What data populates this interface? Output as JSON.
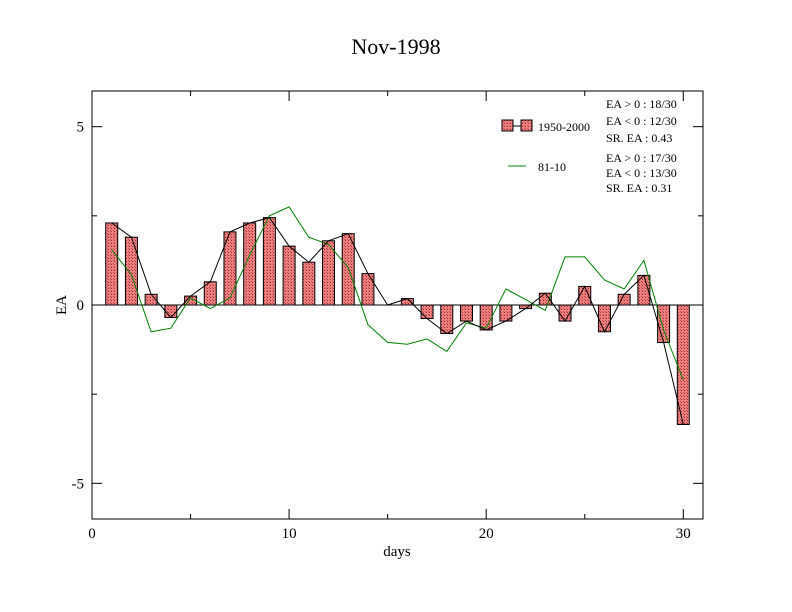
{
  "chart_data": {
    "type": "bar",
    "title": "Nov-1998",
    "xlabel": "days",
    "ylabel": "EA",
    "xlim": [
      0,
      31
    ],
    "ylim": [
      -6,
      6
    ],
    "x_ticks": [
      0,
      10,
      20,
      30
    ],
    "y_ticks": [
      -5,
      0,
      5
    ],
    "x_tick_labels": [
      "0",
      "10",
      "20",
      "30"
    ],
    "y_tick_labels": [
      "-5",
      "0",
      "5"
    ],
    "grid": false,
    "legend_position": "top-right",
    "colors": {
      "bars": "#f08080",
      "bar_outline": "#000000",
      "line_1950": "#000000",
      "line_8110": "#008000"
    },
    "days": [
      1,
      2,
      3,
      4,
      5,
      6,
      7,
      8,
      9,
      10,
      11,
      12,
      13,
      14,
      15,
      16,
      17,
      18,
      19,
      20,
      21,
      22,
      23,
      24,
      25,
      26,
      27,
      28,
      29,
      30
    ],
    "series": [
      {
        "name": "1950-2000",
        "style": "bar+line",
        "values": [
          2.3,
          1.9,
          0.3,
          -0.35,
          0.25,
          0.65,
          2.05,
          2.3,
          2.45,
          1.65,
          1.2,
          1.8,
          2.0,
          0.88,
          0.0,
          0.18,
          -0.38,
          -0.8,
          -0.45,
          -0.7,
          -0.45,
          -0.1,
          0.33,
          -0.45,
          0.52,
          -0.75,
          0.3,
          0.83,
          -1.05,
          -3.35
        ]
      },
      {
        "name": "81-10",
        "style": "line",
        "values": [
          1.55,
          0.85,
          -0.75,
          -0.65,
          0.2,
          -0.1,
          0.2,
          1.4,
          2.5,
          2.75,
          1.9,
          1.7,
          1.05,
          -0.55,
          -1.05,
          -1.1,
          -0.95,
          -1.3,
          -0.5,
          -0.65,
          0.45,
          0.15,
          -0.15,
          1.35,
          1.35,
          0.7,
          0.45,
          1.25,
          -0.7,
          -2.1
        ]
      }
    ],
    "stats": [
      {
        "lines": [
          "EA > 0 : 18/30",
          "EA < 0 : 12/30",
          "SR. EA :  0.43"
        ]
      },
      {
        "lines": [
          "EA > 0 : 17/30",
          "EA < 0 : 13/30",
          "SR. EA :  0.31"
        ]
      }
    ]
  }
}
